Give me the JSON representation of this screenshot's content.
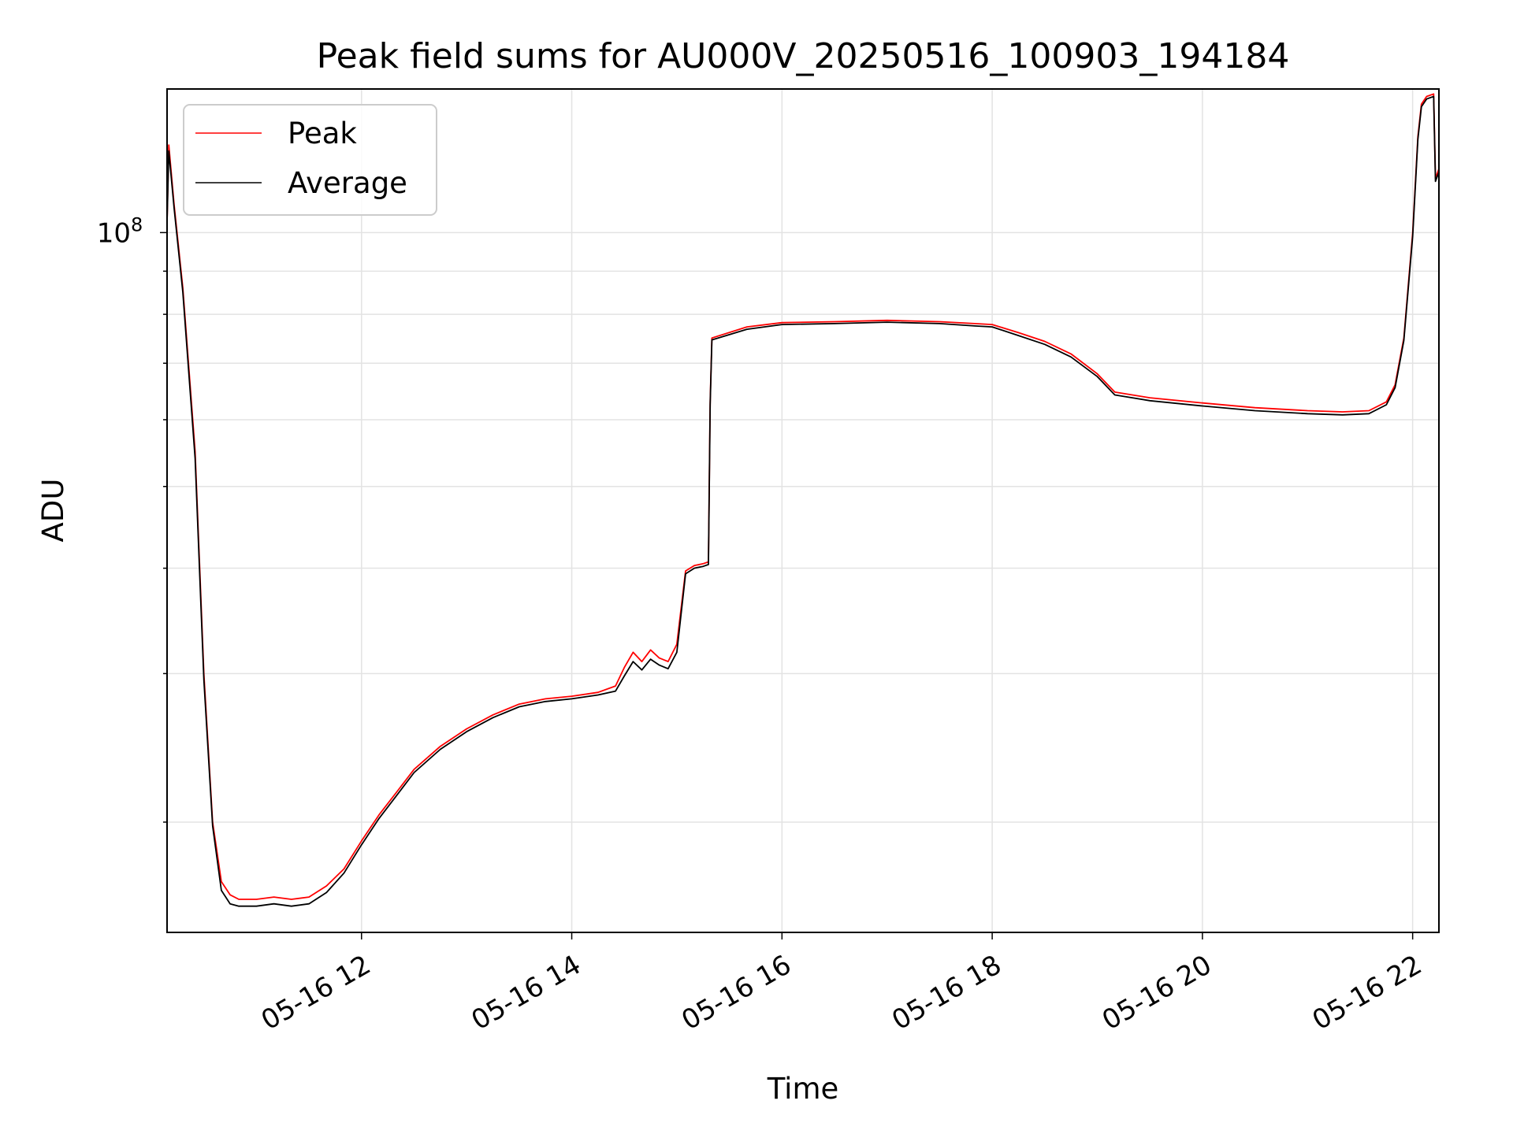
{
  "chart_data": {
    "type": "line",
    "title": "Peak field sums for AU000V_20250516_100903_194184",
    "xlabel": "Time",
    "ylabel": "ADU",
    "y_scale": "log",
    "ylim": [
      14800000,
      148000000
    ],
    "xlim": [
      "05-16 10:09",
      "05-16 22:15"
    ],
    "grid": true,
    "legend_position": "top-left",
    "x_tick_labels": [
      "05-16 12",
      "05-16 14",
      "05-16 16",
      "05-16 18",
      "05-16 20",
      "05-16 22"
    ],
    "y_tick_labels": [
      {
        "base": "10",
        "exponent": "8"
      }
    ],
    "series": [
      {
        "name": "Peak",
        "color": "#ff0000",
        "x": [
          "05-16 10:09",
          "05-16 10:10",
          "05-16 10:13",
          "05-16 10:18",
          "05-16 10:25",
          "05-16 10:30",
          "05-16 10:35",
          "05-16 10:40",
          "05-16 10:45",
          "05-16 10:50",
          "05-16 10:55",
          "05-16 11:00",
          "05-16 11:10",
          "05-16 11:20",
          "05-16 11:30",
          "05-16 11:40",
          "05-16 11:50",
          "05-16 12:00",
          "05-16 12:10",
          "05-16 12:20",
          "05-16 12:30",
          "05-16 12:45",
          "05-16 13:00",
          "05-16 13:15",
          "05-16 13:30",
          "05-16 13:45",
          "05-16 14:00",
          "05-16 14:15",
          "05-16 14:25",
          "05-16 14:30",
          "05-16 14:35",
          "05-16 14:40",
          "05-16 14:45",
          "05-16 14:50",
          "05-16 14:55",
          "05-16 15:00",
          "05-16 15:05",
          "05-16 15:10",
          "05-16 15:15",
          "05-16 15:18",
          "05-16 15:19",
          "05-16 15:20",
          "05-16 15:40",
          "05-16 16:00",
          "05-16 16:30",
          "05-16 17:00",
          "05-16 17:30",
          "05-16 17:50",
          "05-16 18:00",
          "05-16 18:15",
          "05-16 18:30",
          "05-16 18:45",
          "05-16 19:00",
          "05-16 19:10",
          "05-16 19:30",
          "05-16 20:00",
          "05-16 20:30",
          "05-16 21:00",
          "05-16 21:20",
          "05-16 21:35",
          "05-16 21:45",
          "05-16 21:50",
          "05-16 21:55",
          "05-16 22:00",
          "05-16 22:03",
          "05-16 22:05",
          "05-16 22:08",
          "05-16 22:12",
          "05-16 22:13",
          "05-16 22:15"
        ],
        "values": [
          103000000,
          127000000,
          108000000,
          86000000,
          55000000,
          30000000,
          20000000,
          17000000,
          16400000,
          16200000,
          16200000,
          16200000,
          16300000,
          16200000,
          16300000,
          16800000,
          17600000,
          19000000,
          20400000,
          21700000,
          23100000,
          24600000,
          25800000,
          26800000,
          27600000,
          28000000,
          28200000,
          28500000,
          29000000,
          30500000,
          31800000,
          31000000,
          32000000,
          31300000,
          31000000,
          32500000,
          39700000,
          40300000,
          40500000,
          40700000,
          63000000,
          75000000,
          77300000,
          78200000,
          78400000,
          78700000,
          78400000,
          78000000,
          77800000,
          76100000,
          74300000,
          71800000,
          68000000,
          64700000,
          63700000,
          62800000,
          62000000,
          61500000,
          61300000,
          61500000,
          63000000,
          66000000,
          75000000,
          100000000,
          130000000,
          142000000,
          145000000,
          146000000,
          116000000,
          119000000
        ]
      },
      {
        "name": "Average",
        "color": "#000000",
        "x": [
          "05-16 10:09",
          "05-16 10:10",
          "05-16 10:13",
          "05-16 10:18",
          "05-16 10:25",
          "05-16 10:30",
          "05-16 10:35",
          "05-16 10:40",
          "05-16 10:45",
          "05-16 10:50",
          "05-16 10:55",
          "05-16 11:00",
          "05-16 11:10",
          "05-16 11:20",
          "05-16 11:30",
          "05-16 11:40",
          "05-16 11:50",
          "05-16 12:00",
          "05-16 12:10",
          "05-16 12:20",
          "05-16 12:30",
          "05-16 12:45",
          "05-16 13:00",
          "05-16 13:15",
          "05-16 13:30",
          "05-16 13:45",
          "05-16 14:00",
          "05-16 14:15",
          "05-16 14:25",
          "05-16 14:30",
          "05-16 14:35",
          "05-16 14:40",
          "05-16 14:45",
          "05-16 14:50",
          "05-16 14:55",
          "05-16 15:00",
          "05-16 15:05",
          "05-16 15:10",
          "05-16 15:15",
          "05-16 15:18",
          "05-16 15:19",
          "05-16 15:20",
          "05-16 15:40",
          "05-16 16:00",
          "05-16 16:30",
          "05-16 17:00",
          "05-16 17:30",
          "05-16 17:50",
          "05-16 18:00",
          "05-16 18:15",
          "05-16 18:30",
          "05-16 18:45",
          "05-16 19:00",
          "05-16 19:10",
          "05-16 19:30",
          "05-16 20:00",
          "05-16 20:30",
          "05-16 21:00",
          "05-16 21:20",
          "05-16 21:35",
          "05-16 21:45",
          "05-16 21:50",
          "05-16 21:55",
          "05-16 22:00",
          "05-16 22:03",
          "05-16 22:05",
          "05-16 22:08",
          "05-16 22:12",
          "05-16 22:13",
          "05-16 22:15"
        ],
        "values": [
          103000000,
          125000000,
          107000000,
          85000000,
          54000000,
          29500000,
          19800000,
          16600000,
          16000000,
          15900000,
          15900000,
          15900000,
          16000000,
          15900000,
          16000000,
          16500000,
          17400000,
          18800000,
          20200000,
          21500000,
          22900000,
          24400000,
          25600000,
          26600000,
          27400000,
          27800000,
          28000000,
          28300000,
          28600000,
          29800000,
          31000000,
          30300000,
          31200000,
          30700000,
          30400000,
          31800000,
          39400000,
          40000000,
          40200000,
          40400000,
          62500000,
          74600000,
          76800000,
          77800000,
          78000000,
          78300000,
          78000000,
          77500000,
          77300000,
          75500000,
          73700000,
          71200000,
          67500000,
          64200000,
          63200000,
          62300000,
          61500000,
          61000000,
          60800000,
          61000000,
          62500000,
          65500000,
          74500000,
          99000000,
          129000000,
          141000000,
          144000000,
          145000000,
          115000000,
          118000000
        ]
      }
    ]
  }
}
